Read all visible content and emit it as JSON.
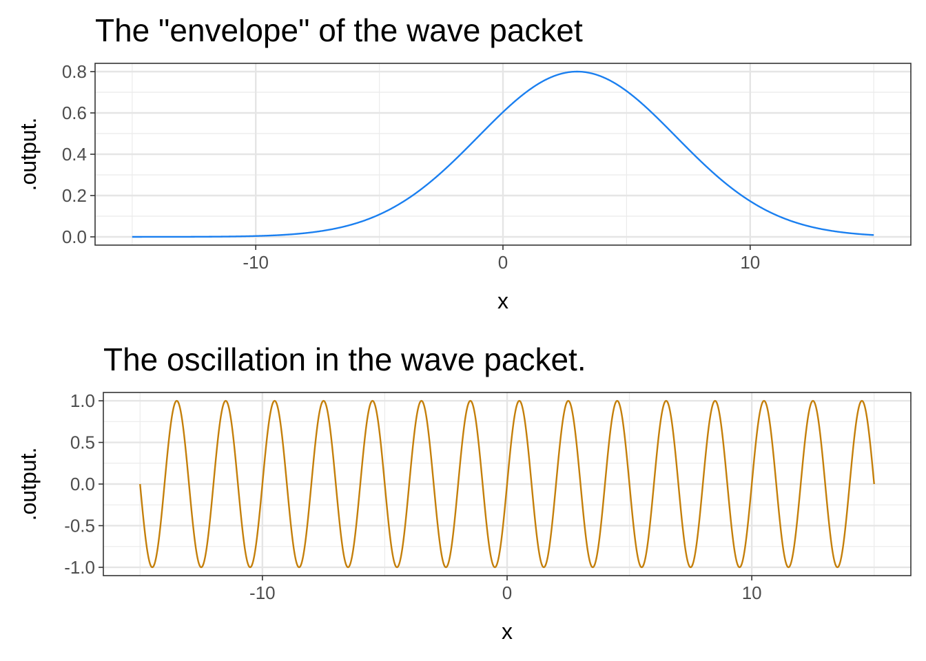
{
  "chart_data": [
    {
      "type": "line",
      "title": "The \"envelope\" of the wave packet",
      "xlabel": "x",
      "ylabel": ".output.",
      "xlim": [
        -16.5,
        16.5
      ],
      "ylim": [
        -0.04,
        0.84
      ],
      "x_ticks": [
        -10,
        0,
        10
      ],
      "x_tick_labels": [
        "-10",
        "0",
        "10"
      ],
      "y_ticks": [
        0.0,
        0.2,
        0.4,
        0.6,
        0.8
      ],
      "y_tick_labels": [
        "0.0",
        "0.2",
        "0.4",
        "0.6",
        "0.8"
      ],
      "grid": true,
      "legend": "none",
      "function": "gaussian",
      "x_range": [
        -15,
        15
      ],
      "amplitude": 0.8,
      "center": 3,
      "width_sigma": 4,
      "color": "#1a7ff0"
    },
    {
      "type": "line",
      "title": "The oscillation in the wave packet.",
      "xlabel": "x",
      "ylabel": ".output.",
      "xlim": [
        -16.5,
        16.5
      ],
      "ylim": [
        -1.1,
        1.1
      ],
      "x_ticks": [
        -10,
        0,
        10
      ],
      "x_tick_labels": [
        "-10",
        "0",
        "10"
      ],
      "y_ticks": [
        -1.0,
        -0.5,
        0.0,
        0.5,
        1.0
      ],
      "y_tick_labels": [
        "-1.0",
        "-0.5",
        "0.0",
        "0.5",
        "1.0"
      ],
      "grid": true,
      "legend": "none",
      "function": "sine",
      "x_range": [
        -15,
        15
      ],
      "amplitude": 1.0,
      "period": 2,
      "color": "#c47f0a"
    }
  ]
}
